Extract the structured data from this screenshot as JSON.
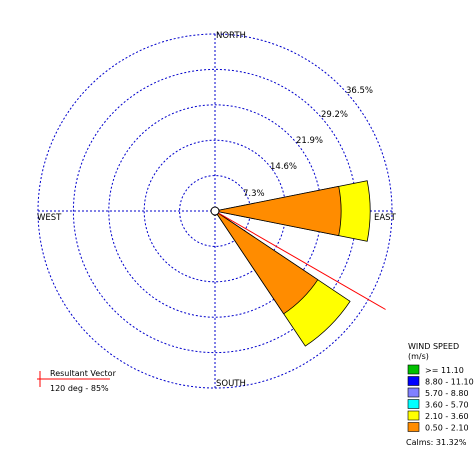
{
  "chart_data": {
    "type": "wind-rose",
    "directions": [
      "NORTH",
      "EAST",
      "SOUTH",
      "WEST"
    ],
    "ring_values": [
      7.3,
      14.6,
      21.9,
      29.2,
      36.5
    ],
    "ring_labels": [
      "7.3%",
      "14.6%",
      "21.9%",
      "29.2%",
      "36.5%"
    ],
    "petal_width_deg": 22.5,
    "petals": [
      {
        "direction_deg": 90,
        "segments": [
          {
            "bin": "0.50 - 2.10",
            "cumulative_pct": 26.0
          },
          {
            "bin": "2.10 - 3.60",
            "cumulative_pct": 32.0
          }
        ]
      },
      {
        "direction_deg": 135,
        "segments": [
          {
            "bin": "0.50 - 2.10",
            "cumulative_pct": 25.5
          },
          {
            "bin": "2.10 - 3.60",
            "cumulative_pct": 33.5
          }
        ]
      },
      {
        "direction_deg": 180,
        "segments": [
          {
            "bin": "0.50 - 2.10",
            "cumulative_pct": 0.9
          }
        ]
      },
      {
        "direction_deg": 202.5,
        "segments": [
          {
            "bin": "0.50 - 2.10",
            "cumulative_pct": 0.5
          }
        ]
      }
    ],
    "resultant_vector": {
      "label": "Resultant Vector",
      "direction_deg": 120,
      "value_label": "120 deg - 85%"
    },
    "legend": {
      "title": "WIND SPEED",
      "unit": "(m/s)",
      "placement": "bottom-right",
      "bins": [
        {
          "label": ">= 11.10",
          "color": "#00c000"
        },
        {
          "label": "8.80 - 11.10",
          "color": "#0000ff"
        },
        {
          "label": "5.70 - 8.80",
          "color": "#8080ff"
        },
        {
          "label": "3.60 - 5.70",
          "color": "#00ffff"
        },
        {
          "label": "2.10 - 3.60",
          "color": "#ffff00"
        },
        {
          "label": "0.50 - 2.10",
          "color": "#ff8c00"
        }
      ],
      "calms": "Calms: 31.32%"
    },
    "colors": {
      "grid": "#0000cc",
      "vector": "#ff0000",
      "petal_edge": "#000000"
    }
  }
}
